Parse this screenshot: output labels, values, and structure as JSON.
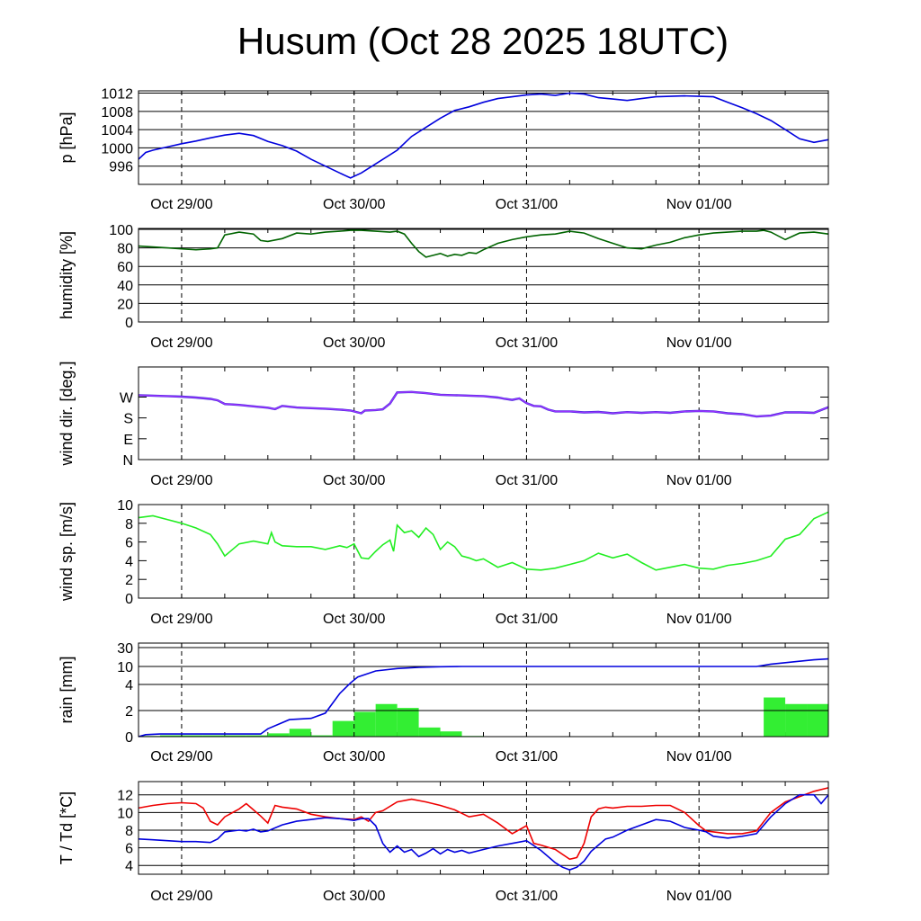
{
  "title": "Husum (Oct 28 2025 18UTC)",
  "x_tick_labels": [
    "Oct 29/00",
    "Oct 30/00",
    "Oct 31/00",
    "Nov 01/00"
  ],
  "x_tick_hours": [
    6,
    30,
    54,
    78
  ],
  "x_range_hours": [
    0,
    96
  ],
  "colors": {
    "pressure": "#0000dd",
    "humidity": "#006400",
    "wind_dir": "#9933ff",
    "wind_speed": "#22ee22",
    "rain_cumulative": "#0000dd",
    "rain_bars": "#33ee33",
    "temperature": "#ee0000",
    "dewpoint": "#0000dd",
    "grid": "#000000"
  },
  "chart_data": [
    {
      "type": "line",
      "ylabel": "p [hPa]",
      "ylim": [
        992,
        1012.5
      ],
      "yticks": [
        996,
        1000,
        1004,
        1008,
        1012
      ],
      "ytick_labels": [
        "996",
        "1000",
        "1004",
        "1008",
        "1012"
      ],
      "grid": true,
      "series": [
        {
          "key": "pressure",
          "x": [
            0,
            1,
            2,
            4,
            6,
            8,
            10,
            12,
            14,
            16,
            18,
            20,
            22,
            24,
            26,
            28,
            29.5,
            31,
            33,
            36,
            38,
            40,
            42,
            44,
            46,
            48,
            50,
            52,
            54,
            56,
            58,
            60,
            62,
            64,
            66,
            68,
            70,
            72,
            74,
            76,
            78,
            80,
            82,
            84,
            86,
            88,
            90,
            92,
            94,
            96
          ],
          "values": [
            997.5,
            999,
            999.5,
            1000.2,
            1000.9,
            1001.5,
            1002.2,
            1002.8,
            1003.2,
            1002.7,
            1001.4,
            1000.5,
            999.3,
            997.5,
            996,
            994.5,
            993.4,
            994.5,
            996.5,
            999.5,
            1002.5,
            1004.5,
            1006.5,
            1008.2,
            1009,
            1010,
            1010.8,
            1011.2,
            1011.6,
            1011.8,
            1011.5,
            1012,
            1011.8,
            1011,
            1010.7,
            1010.4,
            1010.8,
            1011.2,
            1011.3,
            1011.4,
            1011.3,
            1011.2,
            1010,
            1008.8,
            1007.5,
            1006,
            1004,
            1002,
            1001.2,
            1001.8
          ]
        }
      ]
    },
    {
      "type": "line",
      "ylabel": "humidity [%]",
      "ylim": [
        0,
        101
      ],
      "yticks": [
        0,
        20,
        40,
        60,
        80,
        100
      ],
      "ytick_labels": [
        "0",
        "20",
        "40",
        "60",
        "80",
        "100"
      ],
      "grid": true,
      "series": [
        {
          "key": "humidity",
          "x": [
            0,
            2,
            4,
            6,
            8,
            10,
            11,
            12,
            14,
            16,
            17,
            18,
            20,
            22,
            24,
            26,
            28,
            29.5,
            31,
            33,
            35,
            36,
            37,
            38,
            39,
            40,
            41,
            42,
            43,
            44,
            45,
            46,
            47,
            48,
            50,
            52,
            54,
            56,
            58,
            60,
            62,
            64,
            66,
            68,
            70,
            72,
            74,
            76,
            78,
            80,
            82,
            84,
            86,
            87,
            88,
            90,
            92,
            94,
            96
          ],
          "values": [
            82,
            81,
            80,
            79,
            78,
            79,
            80,
            94,
            97,
            95,
            88,
            87,
            90,
            96,
            95,
            97,
            98,
            99,
            99,
            98,
            97,
            98,
            95,
            85,
            76,
            70,
            72,
            74,
            71,
            73,
            72,
            75,
            74,
            78,
            85,
            89,
            92,
            94,
            95,
            98,
            96,
            90,
            85,
            80,
            79,
            83,
            86,
            91,
            94,
            96,
            97,
            98,
            98,
            99,
            97,
            89,
            96,
            97,
            95
          ]
        }
      ]
    },
    {
      "type": "line",
      "ylabel": "wind dir. [deg.]",
      "ylim": [
        0,
        400
      ],
      "yticks": [
        0,
        90,
        180,
        270
      ],
      "ytick_labels": [
        "N",
        "E",
        "S",
        "W"
      ],
      "grid": false,
      "series": [
        {
          "key": "wind_dir",
          "x": [
            0,
            2,
            4,
            6,
            8,
            10,
            11,
            12,
            14,
            16,
            18,
            19,
            20,
            22,
            24,
            26,
            28,
            29.5,
            30.5,
            31,
            31.5,
            33,
            34,
            35,
            36,
            38,
            40,
            41,
            42,
            44,
            46,
            48,
            50,
            51,
            52,
            53,
            54,
            55,
            56,
            57,
            58,
            60,
            62,
            64,
            66,
            68,
            70,
            72,
            74,
            76,
            78,
            80,
            82,
            84,
            86,
            88,
            90,
            92,
            94,
            96
          ],
          "values": [
            278,
            276,
            274,
            272,
            268,
            262,
            256,
            240,
            236,
            230,
            224,
            218,
            232,
            225,
            222,
            220,
            216,
            212,
            204,
            200,
            212,
            214,
            217,
            242,
            290,
            292,
            287,
            283,
            280,
            278,
            276,
            274,
            268,
            262,
            258,
            264,
            244,
            232,
            230,
            216,
            208,
            208,
            204,
            206,
            200,
            205,
            202,
            205,
            202,
            208,
            210,
            208,
            200,
            196,
            186,
            190,
            204,
            204,
            202,
            226
          ]
        }
      ]
    },
    {
      "type": "line",
      "ylabel": "wind sp. [m/s]",
      "ylim": [
        0,
        10
      ],
      "yticks": [
        0,
        2,
        4,
        6,
        8,
        10
      ],
      "ytick_labels": [
        "0",
        "2",
        "4",
        "6",
        "8",
        "10"
      ],
      "grid": false,
      "series": [
        {
          "key": "wind_speed",
          "x": [
            0,
            2,
            4,
            6,
            8,
            10,
            11,
            12,
            14,
            16,
            18,
            18.5,
            19,
            20,
            22,
            24,
            26,
            28,
            29,
            30,
            31,
            32,
            33,
            34,
            35,
            35.5,
            36,
            37,
            38,
            39,
            40,
            41,
            42,
            43,
            44,
            45,
            46,
            47,
            48,
            50,
            52,
            54,
            56,
            58,
            60,
            62,
            64,
            66,
            68,
            70,
            72,
            74,
            76,
            78,
            80,
            82,
            84,
            86,
            88,
            90,
            92,
            94,
            96
          ],
          "values": [
            8.6,
            8.8,
            8.4,
            8,
            7.5,
            6.8,
            5.8,
            4.5,
            5.8,
            6.1,
            5.8,
            7,
            6,
            5.6,
            5.5,
            5.5,
            5.2,
            5.6,
            5.4,
            5.8,
            4.3,
            4.2,
            5,
            5.7,
            6.2,
            5,
            7.8,
            7,
            7.2,
            6.5,
            7.5,
            6.8,
            5.2,
            6,
            5.5,
            4.5,
            4.3,
            4,
            4.2,
            3.3,
            3.8,
            3.1,
            3,
            3.2,
            3.6,
            4,
            4.8,
            4.3,
            4.7,
            3.8,
            3,
            3.3,
            3.6,
            3.2,
            3.1,
            3.5,
            3.7,
            4,
            4.5,
            6.3,
            6.8,
            8.5,
            9.2
          ]
        }
      ]
    },
    {
      "type": "bar+line",
      "ylabel": "rain [mm]",
      "ylim": [
        0,
        30
      ],
      "yticks": [
        0,
        2,
        4,
        10,
        30
      ],
      "ytick_labels": [
        "0",
        "2",
        "4",
        "10",
        "30"
      ],
      "grid": true,
      "scale": "nonlinear-piecewise",
      "bars": {
        "key": "rain_bars",
        "width_hours": 3,
        "start_hours": [
          0,
          3,
          6,
          9,
          12,
          15,
          18,
          21,
          24,
          27,
          30,
          33,
          36,
          39,
          42,
          45,
          48,
          51,
          54,
          57,
          60,
          63,
          66,
          69,
          72,
          75,
          78,
          81,
          84,
          87,
          90,
          93
        ],
        "values": [
          0.05,
          0.1,
          0.1,
          0.1,
          0.1,
          0.1,
          0.25,
          0.6,
          0.1,
          1.2,
          1.9,
          2.5,
          2.2,
          0.7,
          0.4,
          0.05,
          0,
          0,
          0,
          0,
          0,
          0,
          0,
          0,
          0,
          0,
          0,
          0,
          0,
          3,
          2.5,
          2.5
        ]
      },
      "series": [
        {
          "key": "rain_cumulative",
          "x": [
            0,
            1,
            3,
            6,
            9,
            12,
            15,
            17,
            18,
            21,
            24,
            26,
            28,
            29.5,
            30.5,
            33,
            36,
            39,
            42,
            45,
            48,
            54,
            60,
            66,
            72,
            78,
            84,
            86,
            88,
            90,
            94,
            96
          ],
          "values": [
            0,
            0.15,
            0.2,
            0.2,
            0.2,
            0.2,
            0.2,
            0.2,
            0.6,
            1.3,
            1.4,
            1.8,
            3.3,
            4.5,
            6.5,
            8.5,
            9.3,
            9.7,
            9.9,
            10,
            10,
            10,
            10,
            10,
            10,
            10,
            10,
            10,
            12.5,
            14,
            17,
            18
          ]
        }
      ]
    },
    {
      "type": "line",
      "ylabel": "T / Td [*C]",
      "ylim": [
        3,
        13.5
      ],
      "yticks": [
        4,
        6,
        8,
        10,
        12
      ],
      "ytick_labels": [
        "4",
        "6",
        "8",
        "10",
        "12"
      ],
      "grid": true,
      "series": [
        {
          "key": "temperature",
          "x": [
            0,
            2,
            4,
            6,
            8,
            9,
            10,
            11,
            12,
            14,
            15,
            16,
            17,
            18,
            19,
            20,
            22,
            24,
            26,
            28,
            30,
            31,
            32,
            33,
            34,
            36,
            38,
            40,
            42,
            44,
            46,
            48,
            50,
            52,
            54,
            55,
            56,
            58,
            60,
            61,
            62,
            63,
            64,
            65,
            66,
            68,
            70,
            72,
            74,
            76,
            78,
            79,
            80,
            82,
            84,
            86,
            88,
            90,
            92,
            94,
            96
          ],
          "values": [
            10.5,
            10.8,
            11,
            11.1,
            11,
            10.5,
            9,
            8.6,
            9.5,
            10.4,
            11,
            10.3,
            9.6,
            8.8,
            10.8,
            10.6,
            10.4,
            9.8,
            9.5,
            9.3,
            9.2,
            9.5,
            9,
            10,
            10.2,
            11.2,
            11.5,
            11.2,
            10.8,
            10.3,
            9.5,
            9.8,
            8.8,
            7.6,
            8.5,
            6.5,
            6.3,
            5.8,
            4.7,
            4.9,
            6.5,
            9.5,
            10.4,
            10.6,
            10.5,
            10.7,
            10.7,
            10.8,
            10.8,
            10,
            8.5,
            7.9,
            7.8,
            7.6,
            7.6,
            7.9,
            10,
            11.2,
            11.8,
            12.4,
            12.8
          ]
        },
        {
          "key": "dewpoint",
          "x": [
            0,
            2,
            4,
            6,
            8,
            10,
            11,
            12,
            14,
            15,
            16,
            17,
            18,
            20,
            22,
            24,
            26,
            28,
            30,
            31,
            32,
            33,
            34,
            35,
            36,
            37,
            38,
            39,
            40,
            41,
            42,
            43,
            44,
            45,
            46,
            48,
            50,
            52,
            54,
            56,
            58,
            59,
            60,
            61,
            62,
            63,
            64,
            65,
            66,
            68,
            70,
            72,
            74,
            76,
            78,
            79,
            80,
            82,
            84,
            86,
            88,
            90,
            92,
            94,
            95,
            96
          ],
          "values": [
            7,
            6.9,
            6.8,
            6.7,
            6.7,
            6.6,
            7,
            7.8,
            8,
            7.9,
            8.1,
            7.8,
            7.9,
            8.6,
            9,
            9.2,
            9.4,
            9.3,
            9.1,
            9.3,
            9.3,
            8.5,
            6.5,
            5.5,
            6.2,
            5.5,
            5.8,
            5,
            5.4,
            5.9,
            5.3,
            5.8,
            5.5,
            5.7,
            5.4,
            5.8,
            6.2,
            6.5,
            6.8,
            5.7,
            4.3,
            3.8,
            3.5,
            3.8,
            4.5,
            5.6,
            6.3,
            7,
            7.2,
            8,
            8.6,
            9.2,
            9,
            8.3,
            8,
            7.8,
            7.3,
            7.1,
            7.3,
            7.6,
            9.5,
            11,
            12,
            12,
            11,
            12
          ]
        }
      ]
    }
  ]
}
